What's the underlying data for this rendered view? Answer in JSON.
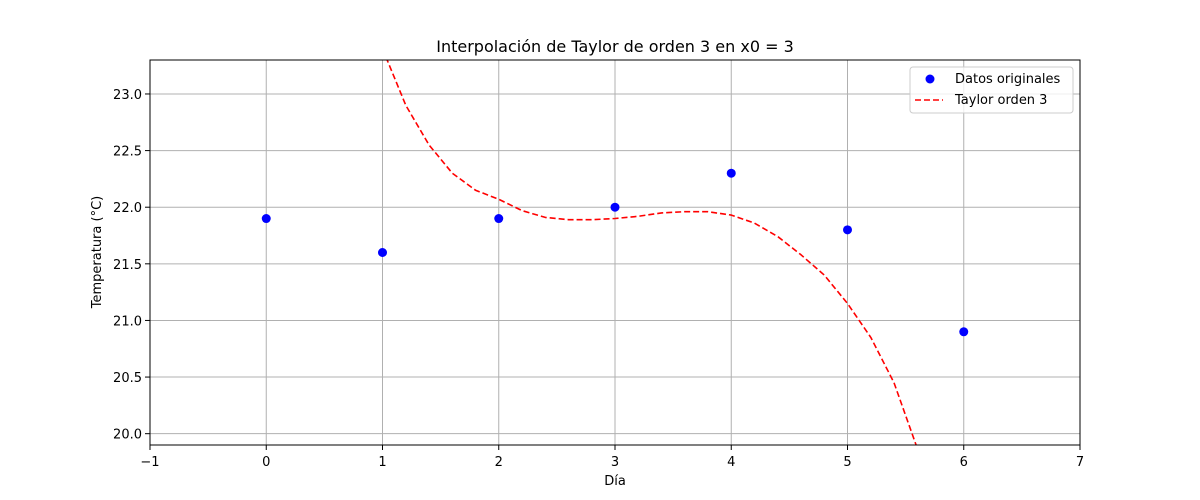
{
  "chart_data": {
    "type": "scatter",
    "title": "Interpolación de Taylor de orden 3 en x0 = 3",
    "xlabel": "Día",
    "ylabel": "Temperatura (°C)",
    "xlim": [
      -1,
      7
    ],
    "ylim": [
      19.9,
      23.3
    ],
    "xticks": [
      -1,
      0,
      1,
      2,
      3,
      4,
      5,
      6,
      7
    ],
    "yticks": [
      20.0,
      20.5,
      21.0,
      21.5,
      22.0,
      22.5,
      23.0
    ],
    "xtick_labels": [
      "−1",
      "0",
      "1",
      "2",
      "3",
      "4",
      "5",
      "6",
      "7"
    ],
    "ytick_labels": [
      "20.0",
      "20.5",
      "21.0",
      "21.5",
      "22.0",
      "22.5",
      "23.0"
    ],
    "grid": true,
    "legend_position": "top-right",
    "series": [
      {
        "name": "Datos originales",
        "kind": "scatter",
        "color": "#0000ff",
        "x": [
          0,
          1,
          2,
          3,
          4,
          5,
          6
        ],
        "y": [
          21.9,
          21.6,
          21.9,
          22.0,
          22.3,
          21.8,
          20.9
        ]
      },
      {
        "name": "Taylor orden 3",
        "kind": "line",
        "style": "dashed",
        "color": "#ff0000",
        "x": [
          1.0,
          1.2,
          1.4,
          1.6,
          1.8,
          2.0,
          2.2,
          2.4,
          2.6,
          2.8,
          3.0,
          3.2,
          3.4,
          3.6,
          3.8,
          4.0,
          4.2,
          4.4,
          4.6,
          4.8,
          5.0,
          5.2,
          5.4,
          5.6
        ],
        "y": [
          23.4,
          22.9,
          22.55,
          22.3,
          22.15,
          22.07,
          21.97,
          21.91,
          21.89,
          21.89,
          21.9,
          21.92,
          21.95,
          21.96,
          21.96,
          21.93,
          21.86,
          21.74,
          21.58,
          21.4,
          21.15,
          20.85,
          20.45,
          19.87
        ]
      }
    ]
  }
}
